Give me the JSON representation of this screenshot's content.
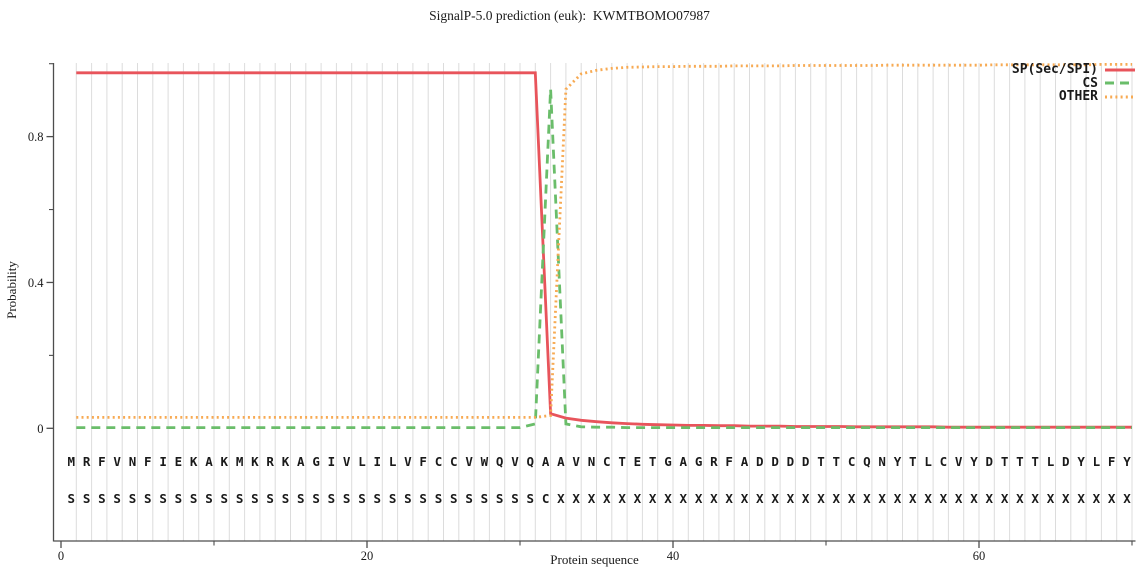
{
  "title": "SignalP-5.0 prediction (euk):  KWMTBOMO07987",
  "chart_data": {
    "type": "line",
    "title": "SignalP-5.0 prediction (euk):  KWMTBOMO07987",
    "xlabel": "Protein sequence",
    "ylabel": "Probability",
    "x_start": 1,
    "x_end": 70,
    "ylim": [
      0,
      1
    ],
    "grid": "vertical-per-residue-on",
    "legend_position": "top-right",
    "xticks_major": [
      0,
      20,
      40,
      60
    ],
    "xticks_minor": [
      10,
      30,
      50,
      70
    ],
    "yticks_major": [
      0,
      0.4,
      0.8
    ],
    "yticks_minor": [
      0.2,
      0.6,
      1.0
    ],
    "ytick_labels": [
      "0",
      "0.4",
      "0.8"
    ],
    "xtick_labels": [
      "0",
      "20",
      "40",
      "60"
    ],
    "sequence": "MRFVNFIEKAKMKRKAGIVLILVFCCVWQVQAAVNCTETGAGRFADDDDTTCQNYTLCVYDTTTLDYLFY",
    "marker_row": "SSSSSSSSSSSSSSSSSSSSSSSSSSSSSSSCXXXXXXXXXXXXXXXXXXXXXXXXXXXXXXXXXXXXXX",
    "cleavage_site_position": 32,
    "colors": {
      "sp": "#e8545b",
      "cs": "#6abd6a",
      "other": "#f7aa53",
      "grid": "#dcdcdc",
      "axis": "#4d4d4d",
      "text": "#1a1a1a"
    },
    "series": [
      {
        "name": "SP(Sec/SPI)",
        "style": "solid",
        "color": "#e8545b",
        "values": [
          0.975,
          0.975,
          0.975,
          0.975,
          0.975,
          0.975,
          0.975,
          0.975,
          0.975,
          0.975,
          0.975,
          0.975,
          0.975,
          0.975,
          0.975,
          0.975,
          0.975,
          0.975,
          0.975,
          0.975,
          0.975,
          0.975,
          0.975,
          0.975,
          0.975,
          0.975,
          0.975,
          0.975,
          0.975,
          0.975,
          0.975,
          0.04,
          0.028,
          0.022,
          0.018,
          0.015,
          0.013,
          0.011,
          0.01,
          0.009,
          0.008,
          0.008,
          0.007,
          0.007,
          0.006,
          0.006,
          0.006,
          0.005,
          0.005,
          0.005,
          0.005,
          0.004,
          0.004,
          0.004,
          0.004,
          0.004,
          0.004,
          0.003,
          0.003,
          0.003,
          0.003,
          0.003,
          0.003,
          0.003,
          0.003,
          0.003,
          0.003,
          0.003,
          0.003,
          0.003
        ]
      },
      {
        "name": "CS",
        "style": "dashed",
        "color": "#6abd6a",
        "values": [
          0.002,
          0.002,
          0.002,
          0.002,
          0.002,
          0.002,
          0.002,
          0.002,
          0.002,
          0.002,
          0.002,
          0.002,
          0.002,
          0.002,
          0.002,
          0.002,
          0.002,
          0.002,
          0.002,
          0.002,
          0.002,
          0.002,
          0.002,
          0.002,
          0.002,
          0.002,
          0.002,
          0.002,
          0.002,
          0.002,
          0.012,
          0.93,
          0.012,
          0.004,
          0.003,
          0.003,
          0.002,
          0.002,
          0.002,
          0.002,
          0.002,
          0.002,
          0.002,
          0.002,
          0.002,
          0.002,
          0.002,
          0.002,
          0.002,
          0.002,
          0.002,
          0.002,
          0.002,
          0.002,
          0.002,
          0.002,
          0.002,
          0.002,
          0.002,
          0.002,
          0.002,
          0.002,
          0.002,
          0.002,
          0.002,
          0.002,
          0.002,
          0.002,
          0.002,
          0.002
        ]
      },
      {
        "name": "OTHER",
        "style": "dotted",
        "color": "#f7aa53",
        "values": [
          0.03,
          0.03,
          0.03,
          0.03,
          0.03,
          0.03,
          0.03,
          0.03,
          0.03,
          0.03,
          0.03,
          0.03,
          0.03,
          0.03,
          0.03,
          0.03,
          0.03,
          0.03,
          0.03,
          0.03,
          0.03,
          0.03,
          0.03,
          0.03,
          0.03,
          0.03,
          0.03,
          0.03,
          0.03,
          0.03,
          0.03,
          0.035,
          0.93,
          0.972,
          0.982,
          0.987,
          0.99,
          0.991,
          0.992,
          0.992,
          0.993,
          0.993,
          0.993,
          0.994,
          0.994,
          0.994,
          0.994,
          0.995,
          0.995,
          0.995,
          0.995,
          0.995,
          0.995,
          0.996,
          0.996,
          0.996,
          0.996,
          0.996,
          0.996,
          0.996,
          0.997,
          0.997,
          0.997,
          0.997,
          0.997,
          0.997,
          0.997,
          0.998,
          0.998,
          0.998
        ]
      }
    ]
  }
}
